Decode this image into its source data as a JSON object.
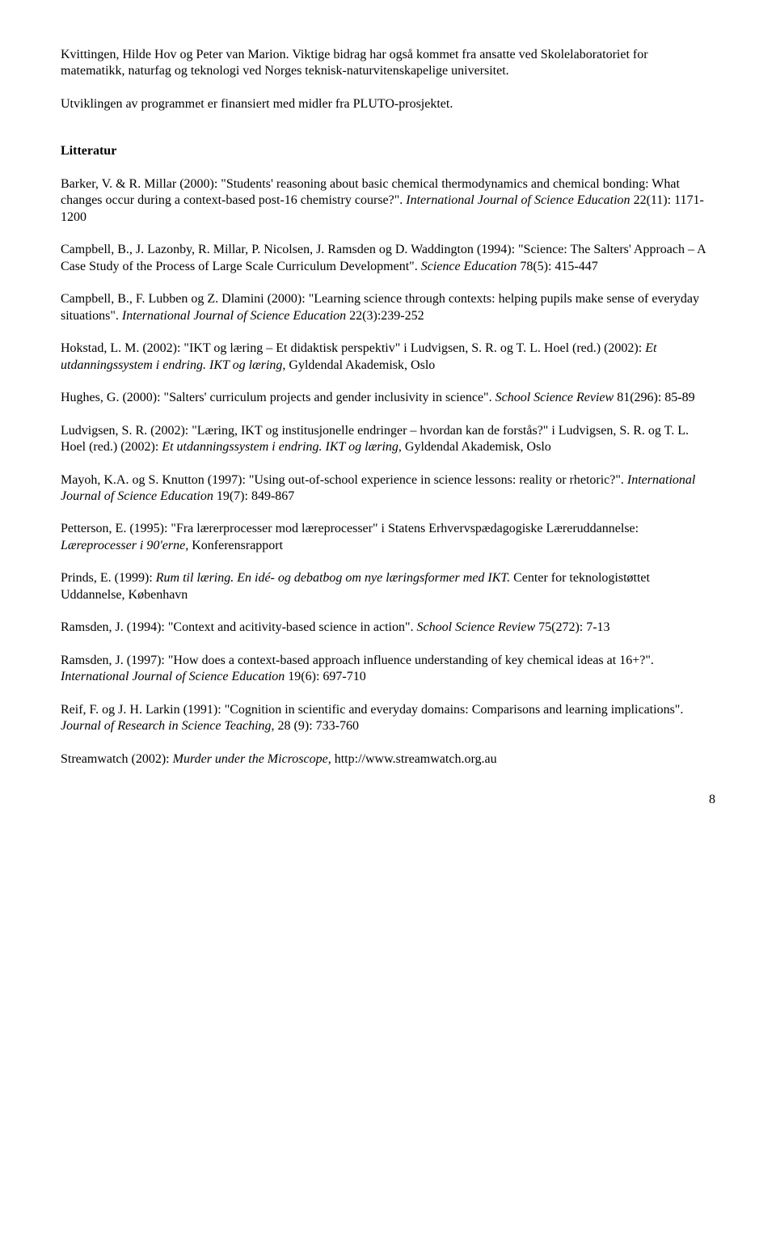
{
  "intro": {
    "p1": "Kvittingen, Hilde Hov og Peter van Marion. Viktige bidrag har også kommet fra ansatte ved Skolelaboratoriet for matematikk, naturfag og teknologi ved Norges teknisk-naturvitenskapelige universitet.",
    "p2": "Utviklingen av programmet er finansiert med midler fra PLUTO-prosjektet."
  },
  "lit_heading": "Litteratur",
  "refs": {
    "r1a": "Barker, V. & R. Millar (2000): \"Students' reasoning about basic chemical thermodynamics and chemical bonding: What changes occur during a context-based post-16 chemistry course?\". ",
    "r1i": "International Journal of Science Education",
    "r1b": " 22(11): 1171-1200",
    "r2a": "Campbell, B., J. Lazonby, R. Millar, P. Nicolsen, J. Ramsden og D. Waddington (1994): \"Science: The Salters' Approach – A Case Study of the Process of Large Scale Curriculum Development\". ",
    "r2i": "Science Education",
    "r2b": " 78(5): 415-447",
    "r3a": "Campbell, B., F. Lubben og Z. Dlamini (2000): \"Learning science through contexts: helping pupils make sense of everyday situations\". ",
    "r3i": "International Journal of Science Education",
    "r3b": " 22(3):239-252",
    "r4a": "Hokstad, L. M. (2002): \"IKT og læring – Et didaktisk perspektiv\" i Ludvigsen, S. R. og T. L. Hoel (red.) (2002): ",
    "r4i": "Et utdanningssystem i endring. IKT og læring",
    "r4b": ", Gyldendal Akademisk, Oslo",
    "r5a": "Hughes, G. (2000): \"Salters' curriculum projects and gender inclusivity in science\". ",
    "r5i": "School Science Review",
    "r5b": " 81(296): 85-89",
    "r6a": "Ludvigsen, S. R. (2002): \"Læring, IKT og institusjonelle endringer – hvordan kan de forstås?\" i Ludvigsen, S. R. og T. L. Hoel (red.) (2002): ",
    "r6i": "Et utdanningssystem i endring. IKT og læring",
    "r6b": ", Gyldendal Akademisk, Oslo",
    "r7a": "Mayoh, K.A. og S. Knutton (1997): \"Using out-of-school experience in science lessons: reality or rhetoric?\". ",
    "r7i": "International Journal of Science Education",
    "r7b": " 19(7): 849-867",
    "r8a": "Petterson, E. (1995): \"Fra lærerprocesser mod læreprocesser\" i Statens Erhvervspædagogiske Læreruddannelse: ",
    "r8i": "Læreprocesser i 90'erne,",
    "r8b": " Konferensrapport",
    "r9a": "Prinds, E. (1999): ",
    "r9i": "Rum til læring. En idé- og debatbog om nye læringsformer med IKT.",
    "r9b": " Center for teknologistøttet Uddannelse, København",
    "r10a": "Ramsden, J. (1994): \"Context and acitivity-based science in action\". ",
    "r10i": "School Science Review",
    "r10b": " 75(272): 7-13",
    "r11a": "Ramsden, J. (1997): \"How does a context-based approach influence understanding of key chemical ideas at 16+?\". ",
    "r11i": "International Journal of Science Education",
    "r11b": " 19(6): 697-710",
    "r12a": "Reif, F. og  J. H. Larkin (1991): \"Cognition in scientific and everyday domains: Comparisons and learning implications\". ",
    "r12i": "Journal of Research in Science Teaching",
    "r12b": ", 28 (9): 733-760",
    "r13a": "Streamwatch (2002): ",
    "r13i": "Murder under the Microscope",
    "r13b": ", http://www.streamwatch.org.au"
  },
  "page_number": "8"
}
